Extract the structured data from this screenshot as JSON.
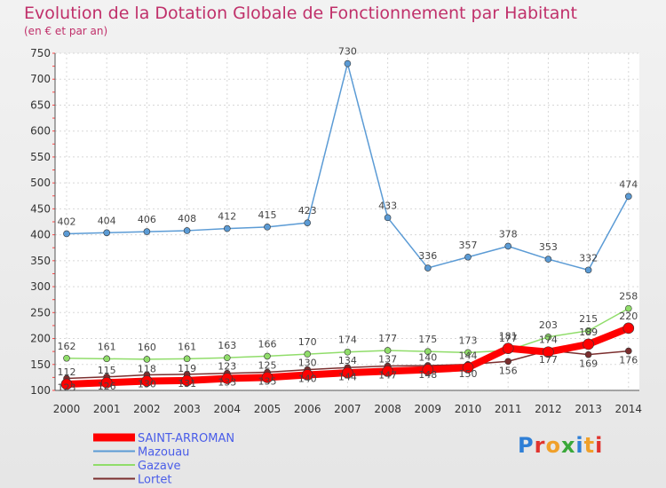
{
  "title": "Evolution de la Dotation Globale de Fonctionnement par Habitant",
  "subtitle": "(en € et par an)",
  "logo_text": "Proxiti",
  "chart_data": {
    "type": "line",
    "x": [
      2000,
      2001,
      2002,
      2003,
      2004,
      2005,
      2006,
      2007,
      2008,
      2009,
      2010,
      2011,
      2012,
      2013,
      2014
    ],
    "ylim": [
      100,
      750
    ],
    "yticks": [
      100,
      150,
      200,
      250,
      300,
      350,
      400,
      450,
      500,
      550,
      600,
      650,
      700,
      750
    ],
    "grid": true,
    "legend": "bottom-left",
    "series": [
      {
        "name": "SAINT-ARROMAN",
        "color": "#ff0000",
        "values": [
          112,
          115,
          118,
          119,
          123,
          125,
          130,
          134,
          137,
          140,
          144,
          181,
          174,
          189,
          220
        ]
      },
      {
        "name": "Mazouau",
        "color": "#5b9bd5",
        "values": [
          402,
          404,
          406,
          408,
          412,
          415,
          423,
          730,
          433,
          336,
          357,
          378,
          353,
          332,
          474
        ]
      },
      {
        "name": "Gazave",
        "color": "#90dd6a",
        "values": [
          162,
          161,
          160,
          161,
          163,
          166,
          170,
          174,
          177,
          175,
          173,
          177,
          203,
          215,
          258
        ]
      },
      {
        "name": "Lortet",
        "color": "#7b2e2e",
        "values": [
          123,
          126,
          130,
          131,
          133,
          135,
          140,
          144,
          147,
          148,
          150,
          156,
          177,
          169,
          176
        ]
      }
    ]
  }
}
